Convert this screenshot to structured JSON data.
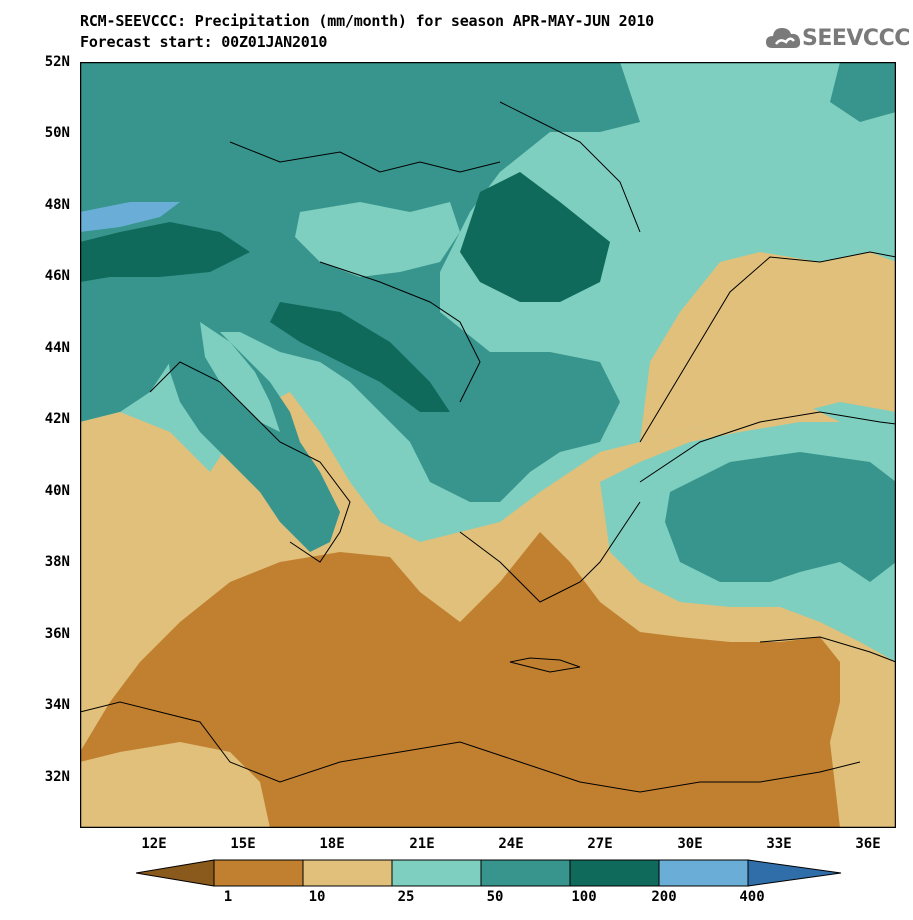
{
  "title_line1": "RCM-SEEVCCC: Precipitation (mm/month) for season APR-MAY-JUN 2010",
  "title_line2": "Forecast start: 00Z01JAN2010",
  "logo_text": "SEEVCCC",
  "lat_labels": [
    "52N",
    "50N",
    "48N",
    "46N",
    "44N",
    "42N",
    "40N",
    "38N",
    "36N",
    "34N",
    "32N"
  ],
  "lon_labels": [
    "12E",
    "15E",
    "18E",
    "21E",
    "24E",
    "27E",
    "30E",
    "33E",
    "36E"
  ],
  "legend": {
    "levels": [
      "1",
      "10",
      "25",
      "50",
      "100",
      "200",
      "400"
    ],
    "colors": [
      "#8a5a1c",
      "#c08030",
      "#e0c07a",
      "#7ecfbf",
      "#37958d",
      "#0f6a5c",
      "#6aaed8",
      "#2f6ea8"
    ]
  },
  "colors": {
    "dry_brown": "#c08030",
    "tan": "#e0c07a",
    "light_teal": "#7ecfbf",
    "mid_teal": "#37958d",
    "dark_teal": "#0f6a5c",
    "blue": "#6aaed8",
    "border_line": "#000000"
  }
}
